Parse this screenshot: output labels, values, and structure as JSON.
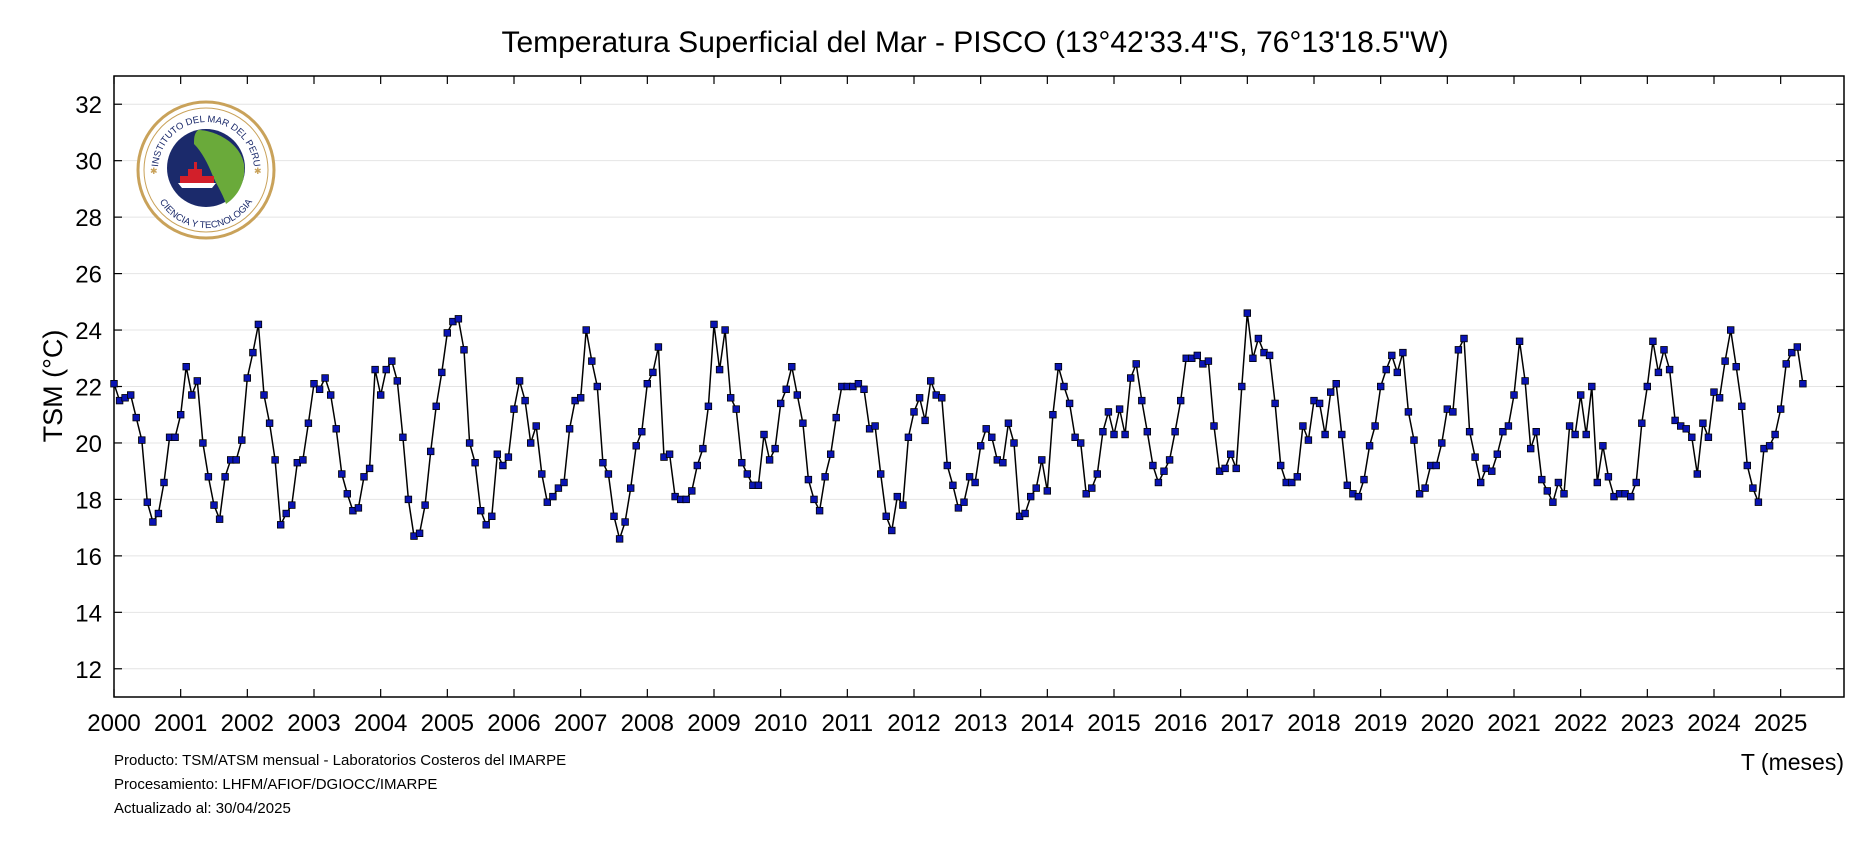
{
  "chart_data": {
    "type": "line",
    "title": "Temperatura Superficial del Mar - PISCO (13°42'33.4''S, 76°13'18.5''W)",
    "ylabel": "TSM (°C)",
    "xlabel": "T (meses)",
    "ylim": [
      11,
      33
    ],
    "yticks": [
      12,
      14,
      16,
      18,
      20,
      22,
      24,
      26,
      28,
      30,
      32
    ],
    "xlim": [
      2000,
      2025.95
    ],
    "xticks": [
      "2000",
      "2001",
      "2002",
      "2003",
      "2004",
      "2005",
      "2006",
      "2007",
      "2008",
      "2009",
      "2010",
      "2011",
      "2012",
      "2013",
      "2014",
      "2015",
      "2016",
      "2017",
      "2018",
      "2019",
      "2020",
      "2021",
      "2022",
      "2023",
      "2024",
      "2025"
    ],
    "grid": true,
    "start": "2000-01",
    "series": [
      {
        "line_color": "#000000",
        "marker_color": "#0a14b4",
        "values": [
          22.1,
          21.5,
          21.6,
          21.7,
          20.9,
          20.1,
          17.9,
          17.2,
          17.5,
          18.6,
          20.2,
          20.2,
          21.0,
          22.7,
          21.7,
          22.2,
          20.0,
          18.8,
          17.8,
          17.3,
          18.8,
          19.4,
          19.4,
          20.1,
          22.3,
          23.2,
          24.2,
          21.7,
          20.7,
          19.4,
          17.1,
          17.5,
          17.8,
          19.3,
          19.4,
          20.7,
          22.1,
          21.9,
          22.3,
          21.7,
          20.5,
          18.9,
          18.2,
          17.6,
          17.7,
          18.8,
          19.1,
          22.6,
          21.7,
          22.6,
          22.9,
          22.2,
          20.2,
          18.0,
          16.7,
          16.8,
          17.8,
          19.7,
          21.3,
          22.5,
          23.9,
          24.3,
          24.4,
          23.3,
          20.0,
          19.3,
          17.6,
          17.1,
          17.4,
          19.6,
          19.2,
          19.5,
          21.2,
          22.2,
          21.5,
          20.0,
          20.6,
          18.9,
          17.9,
          18.1,
          18.4,
          18.6,
          20.5,
          21.5,
          21.6,
          24.0,
          22.9,
          22.0,
          19.3,
          18.9,
          17.4,
          16.6,
          17.2,
          18.4,
          19.9,
          20.4,
          22.1,
          22.5,
          23.4,
          19.5,
          19.6,
          18.1,
          18.0,
          18.0,
          18.3,
          19.2,
          19.8,
          21.3,
          24.2,
          22.6,
          24.0,
          21.6,
          21.2,
          19.3,
          18.9,
          18.5,
          18.5,
          20.3,
          19.4,
          19.8,
          21.4,
          21.9,
          22.7,
          21.7,
          20.7,
          18.7,
          18.0,
          17.6,
          18.8,
          19.6,
          20.9,
          22.0,
          22.0,
          22.0,
          22.1,
          21.9,
          20.5,
          20.6,
          18.9,
          17.4,
          16.9,
          18.1,
          17.8,
          20.2,
          21.1,
          21.6,
          20.8,
          22.2,
          21.7,
          21.6,
          19.2,
          18.5,
          17.7,
          17.9,
          18.8,
          18.6,
          19.9,
          20.5,
          20.2,
          19.4,
          19.3,
          20.7,
          20.0,
          17.4,
          17.5,
          18.1,
          18.4,
          19.4,
          18.3,
          21.0,
          22.7,
          22.0,
          21.4,
          20.2,
          20.0,
          18.2,
          18.4,
          18.9,
          20.4,
          21.1,
          20.3,
          21.2,
          20.3,
          22.3,
          22.8,
          21.5,
          20.4,
          19.2,
          18.6,
          19.0,
          19.4,
          20.4,
          21.5,
          23.0,
          23.0,
          23.1,
          22.8,
          22.9,
          20.6,
          19.0,
          19.1,
          19.6,
          19.1,
          22.0,
          24.6,
          23.0,
          23.7,
          23.2,
          23.1,
          21.4,
          19.2,
          18.6,
          18.6,
          18.8,
          20.6,
          20.1,
          21.5,
          21.4,
          20.3,
          21.8,
          22.1,
          20.3,
          18.5,
          18.2,
          18.1,
          18.7,
          19.9,
          20.6,
          22.0,
          22.6,
          23.1,
          22.5,
          23.2,
          21.1,
          20.1,
          18.2,
          18.4,
          19.2,
          19.2,
          20.0,
          21.2,
          21.1,
          23.3,
          23.7,
          20.4,
          19.5,
          18.6,
          19.1,
          19.0,
          19.6,
          20.4,
          20.6,
          21.7,
          23.6,
          22.2,
          19.8,
          20.4,
          18.7,
          18.3,
          17.9,
          18.6,
          18.2,
          20.6,
          20.3,
          21.7,
          20.3,
          22.0,
          18.6,
          19.9,
          18.8,
          18.1,
          18.2,
          18.2,
          18.1,
          18.6,
          20.7,
          22.0,
          23.6,
          22.5,
          23.3,
          22.6,
          20.8,
          20.6,
          20.5,
          20.2,
          18.9,
          20.7,
          20.2,
          21.8,
          21.6,
          22.9,
          24.0,
          22.7,
          21.3,
          19.2,
          18.4,
          17.9,
          19.8,
          19.9,
          20.3,
          21.2,
          22.8,
          23.2,
          23.4,
          22.1
        ]
      }
    ]
  },
  "footer": {
    "line1": "Producto: TSM/ATSM mensual - Laboratorios Costeros del IMARPE",
    "line2": "Procesamiento: LHFM/AFIOF/DGIOCC/IMARPE",
    "line3": "Actualizado al: 30/04/2025"
  },
  "logo": {
    "top_text": "INSTITUTO DEL MAR DEL PERU",
    "bottom_text": "CIENCIA Y TECNOLOGIA",
    "colors": {
      "ring": "#c9a25a",
      "ocean": "#1b2a6b",
      "land": "#6aaa3a",
      "ship": "#d21f2a"
    }
  }
}
